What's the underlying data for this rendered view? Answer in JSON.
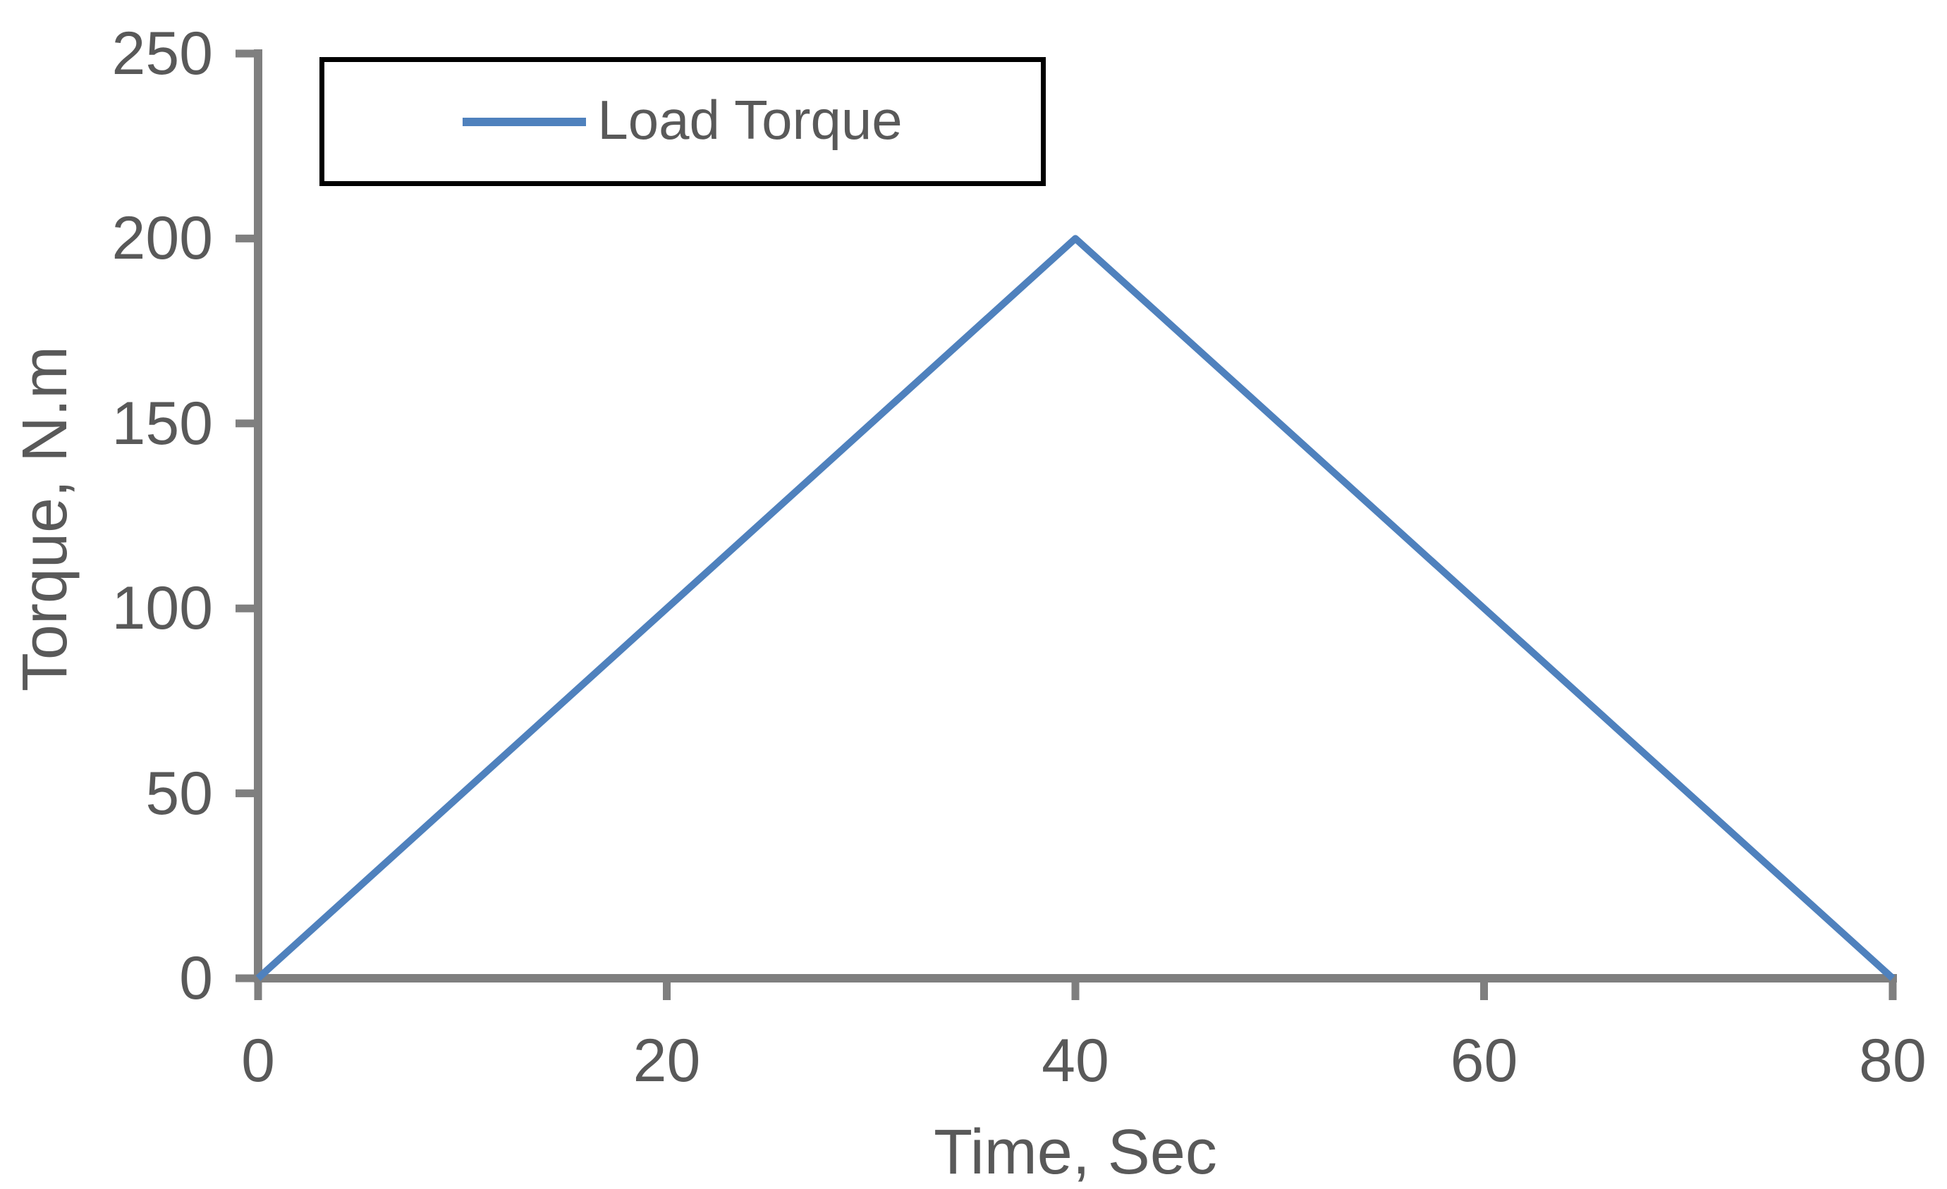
{
  "chart_data": {
    "type": "line",
    "xlabel": "Time, Sec",
    "ylabel": "Torque, N.m",
    "xlim": [
      0,
      80
    ],
    "ylim": [
      0,
      250
    ],
    "x_ticks": [
      0,
      20,
      40,
      60,
      80
    ],
    "y_ticks": [
      0,
      50,
      100,
      150,
      200,
      250
    ],
    "grid": false,
    "legend_position": "top-left",
    "series": [
      {
        "name": "Load Torque",
        "color": "#4f81bd",
        "points": [
          {
            "x": 0,
            "y": 0
          },
          {
            "x": 40,
            "y": 200
          },
          {
            "x": 80,
            "y": 0
          }
        ]
      }
    ]
  },
  "styles": {
    "axis_color": "#7f7f7f",
    "tick_color": "#7f7f7f",
    "text_color": "#595959",
    "legend_border_color": "#000000",
    "background_color": "#ffffff"
  }
}
